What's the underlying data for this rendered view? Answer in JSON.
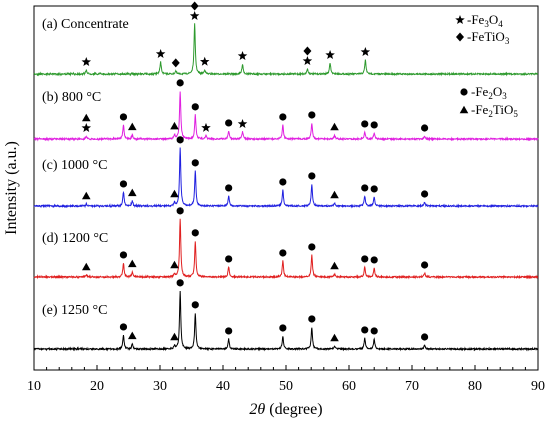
{
  "chart_data": {
    "type": "line",
    "xlabel_parts": {
      "italic": "2θ",
      "rest": " (degree)"
    },
    "ylabel": "Intensity (a.u.)",
    "xlim": [
      10,
      90
    ],
    "xticks": [
      10,
      20,
      30,
      40,
      50,
      60,
      70,
      80,
      90
    ],
    "grid": false,
    "legend_top": [
      {
        "marker": "star",
        "label": "-Fe",
        "sub": "3",
        "mid": "O",
        "sub2": "4"
      },
      {
        "marker": "diamond",
        "label": "-FeTiO",
        "sub": "3",
        "mid": "",
        "sub2": ""
      }
    ],
    "legend_mid": [
      {
        "marker": "circle",
        "label": "-Fe",
        "sub": "2",
        "mid": "O",
        "sub2": "3"
      },
      {
        "marker": "triangle",
        "label": "-Fe",
        "sub": "2",
        "mid": "TiO",
        "sub2": "5"
      }
    ],
    "series": [
      {
        "name": "(a) Concentrate",
        "color": "#2e9a2e",
        "peaks": [
          [
            18.3,
            4
          ],
          [
            30.1,
            12
          ],
          [
            32.5,
            3
          ],
          [
            35.5,
            50
          ],
          [
            37.1,
            4
          ],
          [
            43.1,
            10
          ],
          [
            53.4,
            5
          ],
          [
            57.0,
            11
          ],
          [
            62.6,
            14
          ]
        ],
        "markers": [
          {
            "x": 18.3,
            "m": [
              "star"
            ]
          },
          {
            "x": 30.1,
            "m": [
              "star"
            ]
          },
          {
            "x": 32.5,
            "m": [
              "diamond"
            ]
          },
          {
            "x": 35.5,
            "m": [
              "star",
              "diamond"
            ]
          },
          {
            "x": 37.1,
            "m": [
              "star"
            ]
          },
          {
            "x": 43.1,
            "m": [
              "star"
            ]
          },
          {
            "x": 53.4,
            "m": [
              "star",
              "diamond"
            ]
          },
          {
            "x": 57.0,
            "m": [
              "star"
            ]
          },
          {
            "x": 62.6,
            "m": [
              "star"
            ]
          }
        ]
      },
      {
        "name": "(b) 800 °C",
        "color": "#e020e0",
        "peaks": [
          [
            18.3,
            3
          ],
          [
            24.2,
            14
          ],
          [
            25.6,
            4
          ],
          [
            32.3,
            4
          ],
          [
            33.2,
            48
          ],
          [
            35.6,
            24
          ],
          [
            37.3,
            3
          ],
          [
            40.9,
            8
          ],
          [
            43.1,
            7
          ],
          [
            49.5,
            14
          ],
          [
            54.1,
            16
          ],
          [
            57.7,
            4
          ],
          [
            62.5,
            7
          ],
          [
            64.0,
            6
          ],
          [
            72.0,
            3
          ]
        ],
        "markers": [
          {
            "x": 18.3,
            "m": [
              "star",
              "triangle"
            ]
          },
          {
            "x": 24.2,
            "m": [
              "circle"
            ]
          },
          {
            "x": 25.6,
            "m": [
              "triangle"
            ]
          },
          {
            "x": 32.3,
            "m": [
              "triangle"
            ]
          },
          {
            "x": 33.2,
            "m": [
              "circle"
            ]
          },
          {
            "x": 35.6,
            "m": [
              "circle"
            ]
          },
          {
            "x": 37.3,
            "m": [
              "star"
            ]
          },
          {
            "x": 40.9,
            "m": [
              "circle"
            ]
          },
          {
            "x": 43.1,
            "m": [
              "star"
            ]
          },
          {
            "x": 49.5,
            "m": [
              "circle"
            ]
          },
          {
            "x": 54.1,
            "m": [
              "circle"
            ]
          },
          {
            "x": 57.7,
            "m": [
              "triangle"
            ]
          },
          {
            "x": 62.5,
            "m": [
              "circle"
            ]
          },
          {
            "x": 64.0,
            "m": [
              "circle"
            ]
          },
          {
            "x": 72.0,
            "m": [
              "circle"
            ]
          }
        ]
      },
      {
        "name": "(c) 1000 °C",
        "color": "#2020e0",
        "peaks": [
          [
            18.3,
            2
          ],
          [
            24.2,
            14
          ],
          [
            25.6,
            5
          ],
          [
            32.3,
            3
          ],
          [
            33.2,
            58
          ],
          [
            35.6,
            35
          ],
          [
            40.9,
            10
          ],
          [
            49.5,
            16
          ],
          [
            54.1,
            22
          ],
          [
            57.7,
            3
          ],
          [
            62.5,
            10
          ],
          [
            64.0,
            9
          ],
          [
            72.0,
            4
          ]
        ],
        "markers": [
          {
            "x": 18.3,
            "m": [
              "triangle"
            ]
          },
          {
            "x": 24.2,
            "m": [
              "circle"
            ]
          },
          {
            "x": 25.6,
            "m": [
              "triangle"
            ]
          },
          {
            "x": 32.3,
            "m": [
              "triangle"
            ]
          },
          {
            "x": 33.2,
            "m": [
              "circle"
            ]
          },
          {
            "x": 35.6,
            "m": [
              "circle"
            ]
          },
          {
            "x": 40.9,
            "m": [
              "circle"
            ]
          },
          {
            "x": 49.5,
            "m": [
              "circle"
            ]
          },
          {
            "x": 54.1,
            "m": [
              "circle"
            ]
          },
          {
            "x": 57.7,
            "m": [
              "triangle"
            ]
          },
          {
            "x": 62.5,
            "m": [
              "circle"
            ]
          },
          {
            "x": 64.0,
            "m": [
              "circle"
            ]
          },
          {
            "x": 72.0,
            "m": [
              "circle"
            ]
          }
        ]
      },
      {
        "name": "(d) 1200 °C",
        "color": "#e02020",
        "peaks": [
          [
            18.3,
            2
          ],
          [
            24.2,
            14
          ],
          [
            25.6,
            5
          ],
          [
            32.3,
            3
          ],
          [
            33.2,
            58
          ],
          [
            35.6,
            36
          ],
          [
            40.9,
            10
          ],
          [
            49.5,
            16
          ],
          [
            54.1,
            22
          ],
          [
            57.7,
            3
          ],
          [
            62.5,
            10
          ],
          [
            64.0,
            9
          ],
          [
            72.0,
            4
          ]
        ],
        "markers": [
          {
            "x": 18.3,
            "m": [
              "triangle"
            ]
          },
          {
            "x": 24.2,
            "m": [
              "circle"
            ]
          },
          {
            "x": 25.6,
            "m": [
              "triangle"
            ]
          },
          {
            "x": 32.3,
            "m": [
              "triangle"
            ]
          },
          {
            "x": 33.2,
            "m": [
              "circle"
            ]
          },
          {
            "x": 35.6,
            "m": [
              "circle"
            ]
          },
          {
            "x": 40.9,
            "m": [
              "circle"
            ]
          },
          {
            "x": 49.5,
            "m": [
              "circle"
            ]
          },
          {
            "x": 54.1,
            "m": [
              "circle"
            ]
          },
          {
            "x": 57.7,
            "m": [
              "triangle"
            ]
          },
          {
            "x": 62.5,
            "m": [
              "circle"
            ]
          },
          {
            "x": 64.0,
            "m": [
              "circle"
            ]
          },
          {
            "x": 72.0,
            "m": [
              "circle"
            ]
          }
        ]
      },
      {
        "name": "(e) 1250 °C",
        "color": "#000000",
        "peaks": [
          [
            24.2,
            14
          ],
          [
            25.6,
            5
          ],
          [
            32.3,
            3
          ],
          [
            33.2,
            58
          ],
          [
            35.6,
            36
          ],
          [
            40.9,
            10
          ],
          [
            49.5,
            13
          ],
          [
            54.1,
            22
          ],
          [
            57.7,
            3
          ],
          [
            62.5,
            11
          ],
          [
            64.0,
            10
          ],
          [
            72.0,
            4
          ]
        ],
        "markers": [
          {
            "x": 24.2,
            "m": [
              "circle"
            ]
          },
          {
            "x": 25.6,
            "m": [
              "triangle"
            ]
          },
          {
            "x": 32.3,
            "m": [
              "triangle"
            ]
          },
          {
            "x": 33.2,
            "m": [
              "circle"
            ]
          },
          {
            "x": 35.6,
            "m": [
              "circle"
            ]
          },
          {
            "x": 40.9,
            "m": [
              "circle"
            ]
          },
          {
            "x": 49.5,
            "m": [
              "circle"
            ]
          },
          {
            "x": 54.1,
            "m": [
              "circle"
            ]
          },
          {
            "x": 57.7,
            "m": [
              "triangle"
            ]
          },
          {
            "x": 62.5,
            "m": [
              "circle"
            ]
          },
          {
            "x": 64.0,
            "m": [
              "circle"
            ]
          },
          {
            "x": 72.0,
            "m": [
              "circle"
            ]
          }
        ]
      }
    ]
  }
}
